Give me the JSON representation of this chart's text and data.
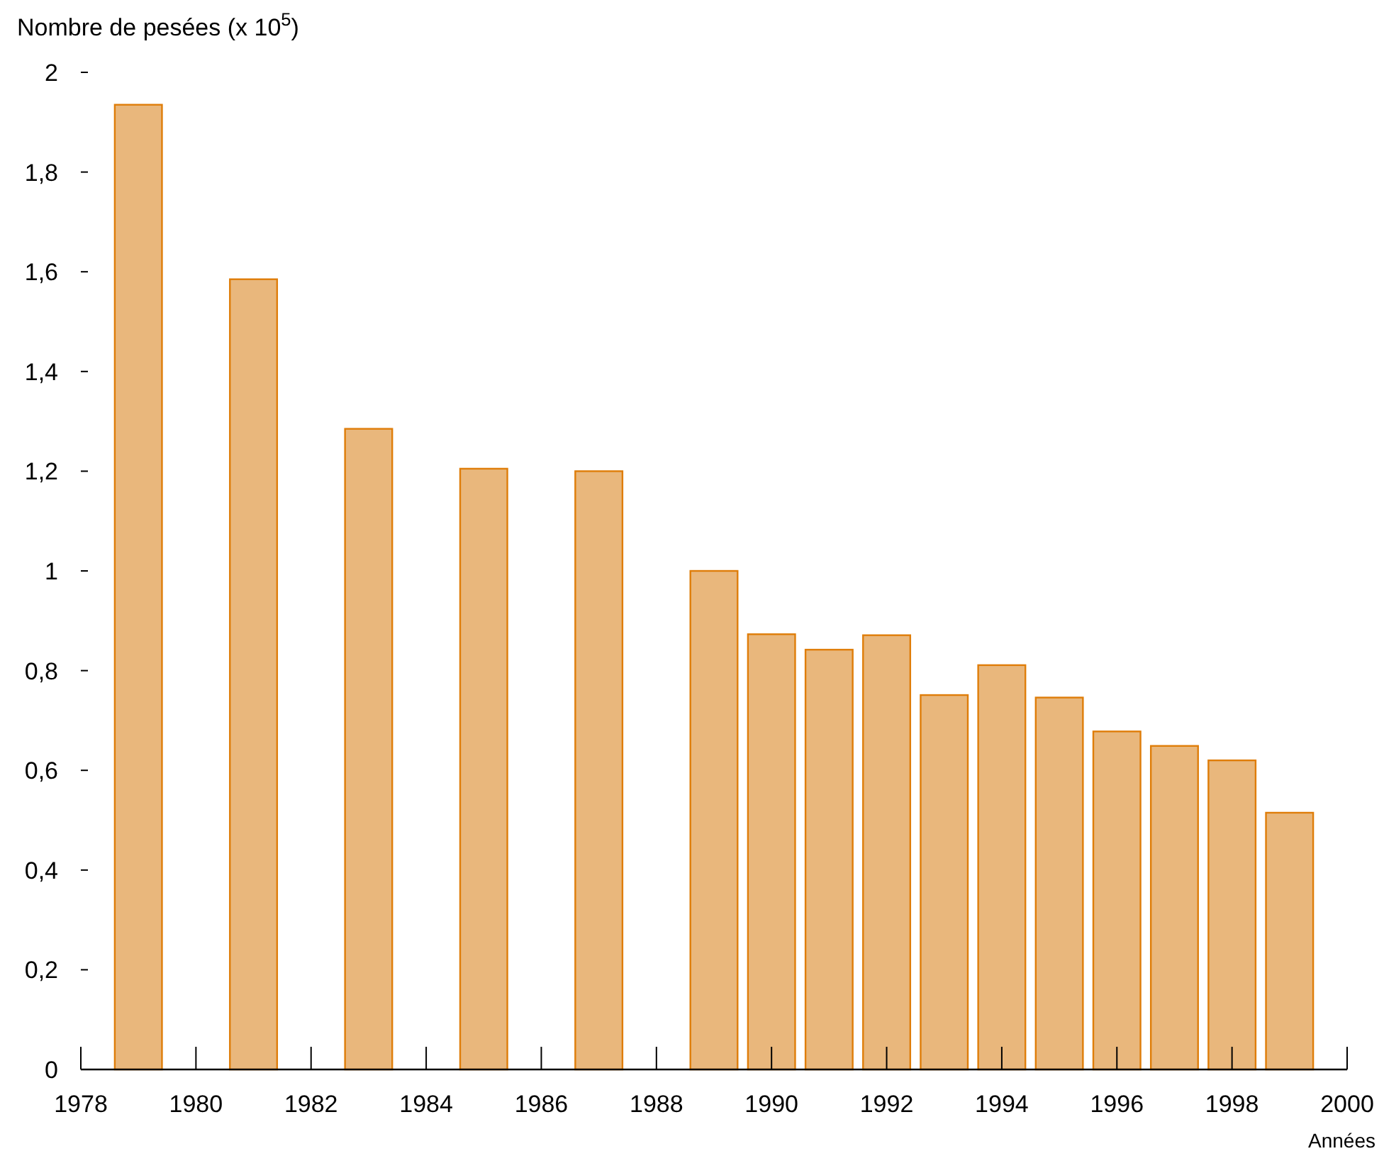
{
  "chart_data": {
    "type": "bar",
    "ylabel": "Nombre de pesées (x 10$^{5}$)",
    "xlabel": "Années",
    "x": [
      1979,
      1981,
      1983,
      1985,
      1987,
      1989,
      1990,
      1991,
      1992,
      1993,
      1994,
      1995,
      1996,
      1997,
      1998,
      1999
    ],
    "values": [
      1.935,
      1.585,
      1.285,
      1.205,
      1.2,
      1.0,
      0.873,
      0.842,
      0.871,
      0.751,
      0.811,
      0.746,
      0.678,
      0.649,
      0.62,
      0.515
    ],
    "color": "#e9b77c",
    "xlim": [
      1978,
      2000
    ],
    "xticks": [
      1978,
      1980,
      1982,
      1984,
      1986,
      1988,
      1990,
      1992,
      1994,
      1996,
      1998,
      2000
    ],
    "ylim": [
      0,
      2
    ],
    "yticks": [
      0,
      {
        "value": 0.2,
        "label": "0,2"
      },
      {
        "value": 0.4,
        "label": "0,4"
      },
      {
        "value": 0.6,
        "label": "0,6"
      },
      {
        "value": 0.8,
        "label": "0,8"
      },
      1,
      {
        "value": 1.2,
        "label": "1,2"
      },
      {
        "value": 1.4,
        "label": "1,4"
      },
      {
        "value": 1.6,
        "label": "1,6"
      },
      {
        "value": 1.8,
        "label": "1,8"
      },
      2
    ],
    "grid": false
  }
}
